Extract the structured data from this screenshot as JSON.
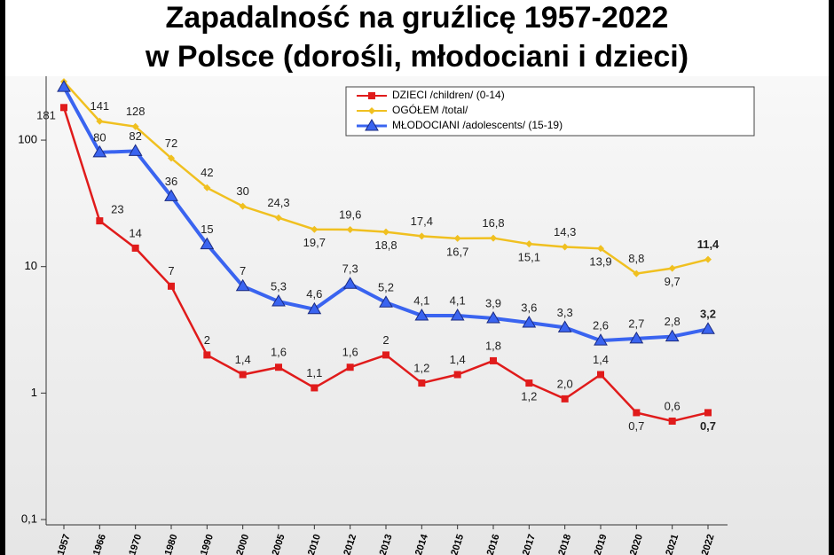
{
  "chart_data": {
    "type": "line",
    "title": "Zapadalność na gruźlicę 1957-2022",
    "subtitle": "w Polsce (dorośli, młodociani i dzieci)",
    "categories": [
      "1957",
      "1966",
      "1970",
      "1980",
      "1990",
      "2000",
      "2005",
      "2010",
      "2012",
      "2013",
      "2014",
      "2015",
      "2016",
      "2017",
      "2018",
      "2019",
      "2020",
      "2021",
      "2022"
    ],
    "log_scale": true,
    "ylim": [
      0.1,
      320
    ],
    "yticks": [
      {
        "value": 0.1,
        "label": "0,1"
      },
      1,
      10,
      100
    ],
    "legend": "top-right",
    "series": [
      {
        "name": "DZIECI /children/ (0-14)",
        "color": "#e01b1b",
        "marker": "square",
        "values": [
          181,
          23,
          14,
          7,
          2,
          1.4,
          1.6,
          1.1,
          1.6,
          2,
          1.2,
          1.4,
          1.8,
          1.2,
          0.9,
          1.4,
          0.7,
          0.6,
          0.7
        ],
        "value_labels": [
          "181",
          "23",
          "14",
          "7",
          "2",
          "1,4",
          "1,6",
          "1,1",
          "1,6",
          "2",
          "1,2",
          "1,4",
          "1,8",
          "1,2",
          null,
          "1,4",
          "0,7",
          "0,6",
          "0,7"
        ]
      },
      {
        "name": "OGÓŁEM /total/",
        "color": "#f0c020",
        "marker": "diamond",
        "values": [
          290,
          141,
          128,
          72,
          42,
          30,
          24.3,
          19.7,
          19.6,
          18.8,
          17.4,
          16.7,
          16.8,
          15.1,
          14.3,
          13.9,
          8.8,
          9.7,
          11.4
        ],
        "value_labels": [
          null,
          "141",
          "128",
          "72",
          "42",
          "30",
          "24,3",
          "19,7",
          "19,6",
          "18,8",
          "17,4",
          "16,7",
          "16,8",
          "15,1",
          "14,3",
          "13,9",
          "8,8",
          "9,7",
          "11,4"
        ]
      },
      {
        "name": "MŁODOCIANI /adolescents/ (15-19)",
        "color": "#3a64f0",
        "marker": "triangle",
        "values": [
          263,
          80,
          82,
          36,
          15,
          7,
          5.3,
          4.6,
          7.3,
          5.2,
          4.1,
          4.1,
          3.9,
          3.6,
          3.3,
          2.6,
          2.7,
          2.8,
          3.2
        ],
        "value_labels": [
          null,
          "80",
          "82",
          "36",
          "15",
          "7",
          "5,3",
          "4,6",
          "7,3",
          "5,2",
          "4,1",
          "4,1",
          "3,9",
          "3,6",
          "3,3",
          "2,6",
          "2,7",
          "2,8",
          "3,2"
        ]
      }
    ],
    "annotations": [
      "2,0"
    ]
  }
}
